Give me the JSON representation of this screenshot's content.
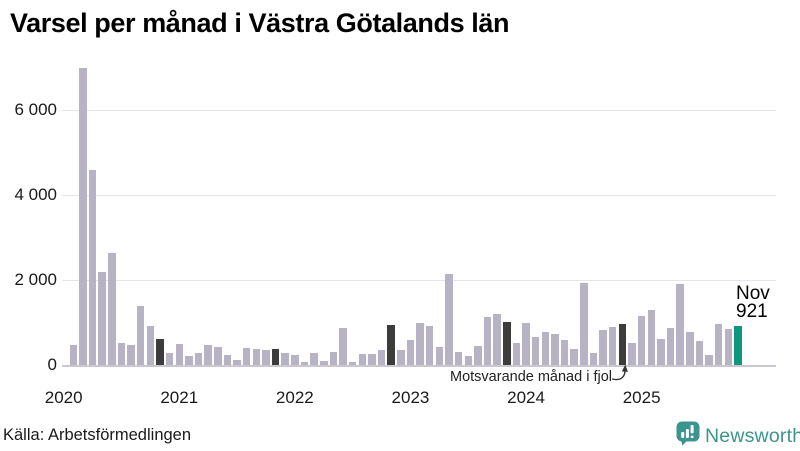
{
  "title": "Varsel per månad i Västra Götalands län",
  "source": "Källa: Arbetsförmedlingen",
  "annotation": {
    "text": "Motsvarande månad i fjol"
  },
  "highlight_label": {
    "month": "Nov",
    "value": "921"
  },
  "logo": {
    "text": "Newsworthy"
  },
  "colors": {
    "bar_light": "#b7b2c4",
    "bar_dark": "#3c3c3c",
    "bar_highlight": "#10967e",
    "grid": "#e5e4eb",
    "baseline": "#c9c8d0",
    "axis_text": "#1a1a1a",
    "logo_teal": "#3b948d"
  },
  "chart_data": {
    "type": "bar",
    "title": "Varsel per månad i Västra Götalands län",
    "xlabel": "",
    "ylabel": "",
    "ylim": [
      0,
      7200
    ],
    "yticks": [
      0,
      2000,
      4000,
      6000
    ],
    "ytick_labels": [
      "0",
      "2 000",
      "4 000",
      "6 000"
    ],
    "year_labels": [
      "2020",
      "2021",
      "2022",
      "2023",
      "2024",
      "2025"
    ],
    "grid": true,
    "series": [
      {
        "name": "Varsel per månad",
        "points": [
          {
            "month": "2020-02",
            "value": 470,
            "kind": "regular"
          },
          {
            "month": "2020-03",
            "value": 7000,
            "kind": "regular"
          },
          {
            "month": "2020-04",
            "value": 4600,
            "kind": "regular"
          },
          {
            "month": "2020-05",
            "value": 2190,
            "kind": "regular"
          },
          {
            "month": "2020-06",
            "value": 2640,
            "kind": "regular"
          },
          {
            "month": "2020-07",
            "value": 520,
            "kind": "regular"
          },
          {
            "month": "2020-08",
            "value": 480,
            "kind": "regular"
          },
          {
            "month": "2020-09",
            "value": 1390,
            "kind": "regular"
          },
          {
            "month": "2020-10",
            "value": 920,
            "kind": "regular"
          },
          {
            "month": "2020-11",
            "value": 610,
            "kind": "prior-november"
          },
          {
            "month": "2020-12",
            "value": 290,
            "kind": "regular"
          },
          {
            "month": "2021-01",
            "value": 500,
            "kind": "regular"
          },
          {
            "month": "2021-02",
            "value": 210,
            "kind": "regular"
          },
          {
            "month": "2021-03",
            "value": 280,
            "kind": "regular"
          },
          {
            "month": "2021-04",
            "value": 470,
            "kind": "regular"
          },
          {
            "month": "2021-05",
            "value": 420,
            "kind": "regular"
          },
          {
            "month": "2021-06",
            "value": 240,
            "kind": "regular"
          },
          {
            "month": "2021-07",
            "value": 120,
            "kind": "regular"
          },
          {
            "month": "2021-08",
            "value": 400,
            "kind": "regular"
          },
          {
            "month": "2021-09",
            "value": 380,
            "kind": "regular"
          },
          {
            "month": "2021-10",
            "value": 350,
            "kind": "regular"
          },
          {
            "month": "2021-11",
            "value": 370,
            "kind": "prior-november"
          },
          {
            "month": "2021-12",
            "value": 280,
            "kind": "regular"
          },
          {
            "month": "2022-01",
            "value": 235,
            "kind": "regular"
          },
          {
            "month": "2022-02",
            "value": 80,
            "kind": "regular"
          },
          {
            "month": "2022-03",
            "value": 280,
            "kind": "regular"
          },
          {
            "month": "2022-04",
            "value": 100,
            "kind": "regular"
          },
          {
            "month": "2022-05",
            "value": 310,
            "kind": "regular"
          },
          {
            "month": "2022-06",
            "value": 880,
            "kind": "regular"
          },
          {
            "month": "2022-07",
            "value": 60,
            "kind": "regular"
          },
          {
            "month": "2022-08",
            "value": 260,
            "kind": "regular"
          },
          {
            "month": "2022-09",
            "value": 260,
            "kind": "regular"
          },
          {
            "month": "2022-10",
            "value": 345,
            "kind": "regular"
          },
          {
            "month": "2022-11",
            "value": 930,
            "kind": "prior-november"
          },
          {
            "month": "2022-12",
            "value": 350,
            "kind": "regular"
          },
          {
            "month": "2023-01",
            "value": 590,
            "kind": "regular"
          },
          {
            "month": "2023-02",
            "value": 1000,
            "kind": "regular"
          },
          {
            "month": "2023-03",
            "value": 920,
            "kind": "regular"
          },
          {
            "month": "2023-04",
            "value": 430,
            "kind": "regular"
          },
          {
            "month": "2023-05",
            "value": 2150,
            "kind": "regular"
          },
          {
            "month": "2023-06",
            "value": 310,
            "kind": "regular"
          },
          {
            "month": "2023-07",
            "value": 210,
            "kind": "regular"
          },
          {
            "month": "2023-08",
            "value": 450,
            "kind": "regular"
          },
          {
            "month": "2023-09",
            "value": 1140,
            "kind": "regular"
          },
          {
            "month": "2023-10",
            "value": 1190,
            "kind": "regular"
          },
          {
            "month": "2023-11",
            "value": 1020,
            "kind": "prior-november"
          },
          {
            "month": "2023-12",
            "value": 510,
            "kind": "regular"
          },
          {
            "month": "2024-01",
            "value": 1000,
            "kind": "regular"
          },
          {
            "month": "2024-02",
            "value": 670,
            "kind": "regular"
          },
          {
            "month": "2024-03",
            "value": 780,
            "kind": "regular"
          },
          {
            "month": "2024-04",
            "value": 720,
            "kind": "regular"
          },
          {
            "month": "2024-05",
            "value": 600,
            "kind": "regular"
          },
          {
            "month": "2024-06",
            "value": 380,
            "kind": "regular"
          },
          {
            "month": "2024-07",
            "value": 1920,
            "kind": "regular"
          },
          {
            "month": "2024-08",
            "value": 280,
            "kind": "regular"
          },
          {
            "month": "2024-09",
            "value": 820,
            "kind": "regular"
          },
          {
            "month": "2024-10",
            "value": 900,
            "kind": "regular"
          },
          {
            "month": "2024-11",
            "value": 965,
            "kind": "prior-november"
          },
          {
            "month": "2024-12",
            "value": 510,
            "kind": "regular"
          },
          {
            "month": "2025-01",
            "value": 1150,
            "kind": "regular"
          },
          {
            "month": "2025-02",
            "value": 1290,
            "kind": "regular"
          },
          {
            "month": "2025-03",
            "value": 605,
            "kind": "regular"
          },
          {
            "month": "2025-04",
            "value": 880,
            "kind": "regular"
          },
          {
            "month": "2025-05",
            "value": 1900,
            "kind": "regular"
          },
          {
            "month": "2025-06",
            "value": 780,
            "kind": "regular"
          },
          {
            "month": "2025-07",
            "value": 565,
            "kind": "regular"
          },
          {
            "month": "2025-08",
            "value": 235,
            "kind": "regular"
          },
          {
            "month": "2025-09",
            "value": 955,
            "kind": "regular"
          },
          {
            "month": "2025-10",
            "value": 840,
            "kind": "regular"
          },
          {
            "month": "2025-11",
            "value": 921,
            "kind": "current"
          }
        ]
      }
    ]
  }
}
